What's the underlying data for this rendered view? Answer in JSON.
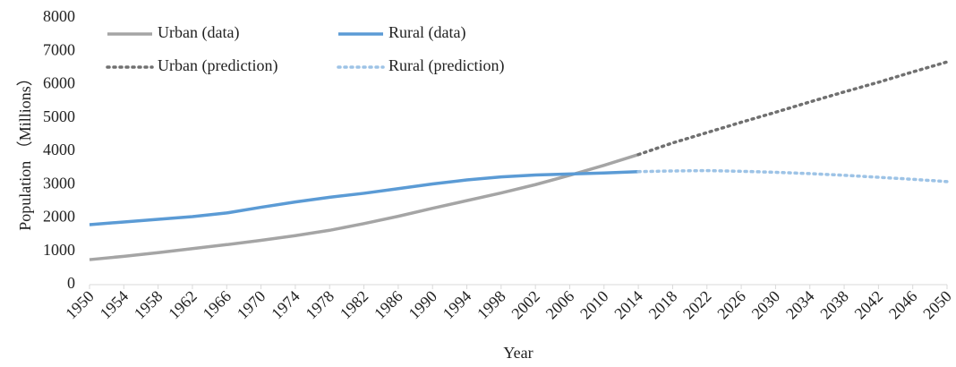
{
  "chart_data": {
    "type": "line",
    "xlabel": "Year",
    "ylabel": "Population （Millions）",
    "x": [
      1950,
      1954,
      1958,
      1962,
      1966,
      1970,
      1974,
      1978,
      1982,
      1986,
      1990,
      1994,
      1998,
      2002,
      2006,
      2010,
      2014,
      2018,
      2022,
      2026,
      2030,
      2034,
      2038,
      2042,
      2046,
      2050
    ],
    "series": [
      {
        "name": "Urban (data)",
        "color": "#a5a5a5",
        "style": "solid",
        "values": [
          750,
          850,
          960,
          1080,
          1200,
          1330,
          1470,
          1630,
          1830,
          2050,
          2290,
          2520,
          2750,
          3000,
          3280,
          3580,
          3900,
          null,
          null,
          null,
          null,
          null,
          null,
          null,
          null,
          null
        ]
      },
      {
        "name": "Rural (data)",
        "color": "#5b9bd5",
        "style": "solid",
        "values": [
          1800,
          1880,
          1960,
          2040,
          2150,
          2320,
          2480,
          2620,
          2740,
          2880,
          3020,
          3140,
          3230,
          3290,
          3320,
          3350,
          3390,
          null,
          null,
          null,
          null,
          null,
          null,
          null,
          null,
          null
        ]
      },
      {
        "name": "Urban (prediction)",
        "color": "#707070",
        "style": "dotted",
        "values": [
          null,
          null,
          null,
          null,
          null,
          null,
          null,
          null,
          null,
          null,
          null,
          null,
          null,
          null,
          null,
          null,
          3900,
          4250,
          4560,
          4870,
          5170,
          5480,
          5780,
          6070,
          6380,
          6680
        ]
      },
      {
        "name": "Rural (prediction)",
        "color": "#9dc3e6",
        "style": "dotted",
        "values": [
          null,
          null,
          null,
          null,
          null,
          null,
          null,
          null,
          null,
          null,
          null,
          null,
          null,
          null,
          null,
          null,
          3390,
          3410,
          3420,
          3400,
          3370,
          3330,
          3280,
          3220,
          3160,
          3090
        ]
      }
    ],
    "xlim": [
      1950,
      2050
    ],
    "xticks": [
      1950,
      1954,
      1958,
      1962,
      1966,
      1970,
      1974,
      1978,
      1982,
      1986,
      1990,
      1994,
      1998,
      2002,
      2006,
      2010,
      2014,
      2018,
      2022,
      2026,
      2030,
      2034,
      2038,
      2042,
      2046,
      2050
    ],
    "ylim": [
      0,
      8000
    ],
    "yticks": [
      0,
      1000,
      2000,
      3000,
      4000,
      5000,
      6000,
      7000,
      8000
    ],
    "grid": false,
    "legend": "top-left"
  }
}
